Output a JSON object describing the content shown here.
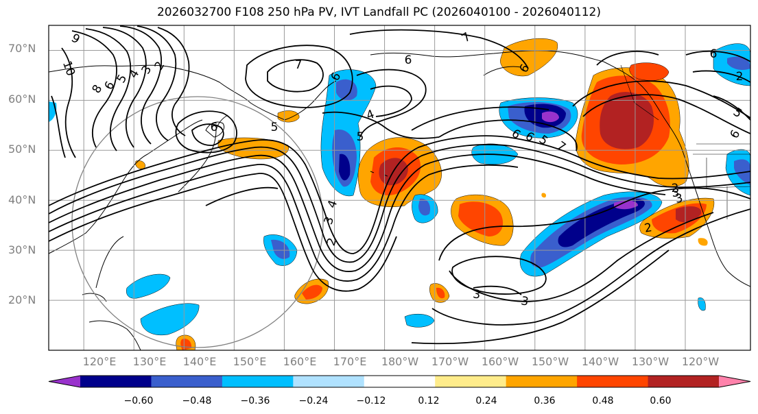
{
  "title": "2026032700 F108 250 hPa PV, IVT Landfall PC (2026040100 - 2026040112)",
  "lat_labels": [
    "70°N",
    "60°N",
    "50°N",
    "40°N",
    "30°N",
    "20°N"
  ],
  "lon_labels": [
    "120°E",
    "130°E",
    "140°E",
    "150°E",
    "160°E",
    "170°E",
    "180°W",
    "170°W",
    "160°W",
    "150°W",
    "140°W",
    "130°W",
    "120°W"
  ],
  "colorbar": {
    "ticks": [
      "−0.60",
      "−0.48",
      "−0.36",
      "−0.24",
      "−0.12",
      "0.12",
      "0.24",
      "0.36",
      "0.48",
      "0.60"
    ],
    "colors": [
      "#9932cc",
      "#00008b",
      "#3a5fcd",
      "#00bfff",
      "#b0e2ff",
      "#ffffff",
      "#ffec8b",
      "#ffa500",
      "#ff4500",
      "#b22222",
      "#ff82ab"
    ]
  },
  "contour_labels": [
    "9",
    "10",
    "8",
    "6",
    "5",
    "4",
    "3",
    "2",
    "7",
    "6",
    "6",
    "5",
    "4",
    "7",
    "6",
    "5",
    "6",
    "7",
    "6",
    "6",
    "5",
    "4",
    "3",
    "2",
    "2",
    "3",
    "6",
    "2",
    "3",
    "3",
    "5",
    "2",
    "3",
    "6"
  ]
}
